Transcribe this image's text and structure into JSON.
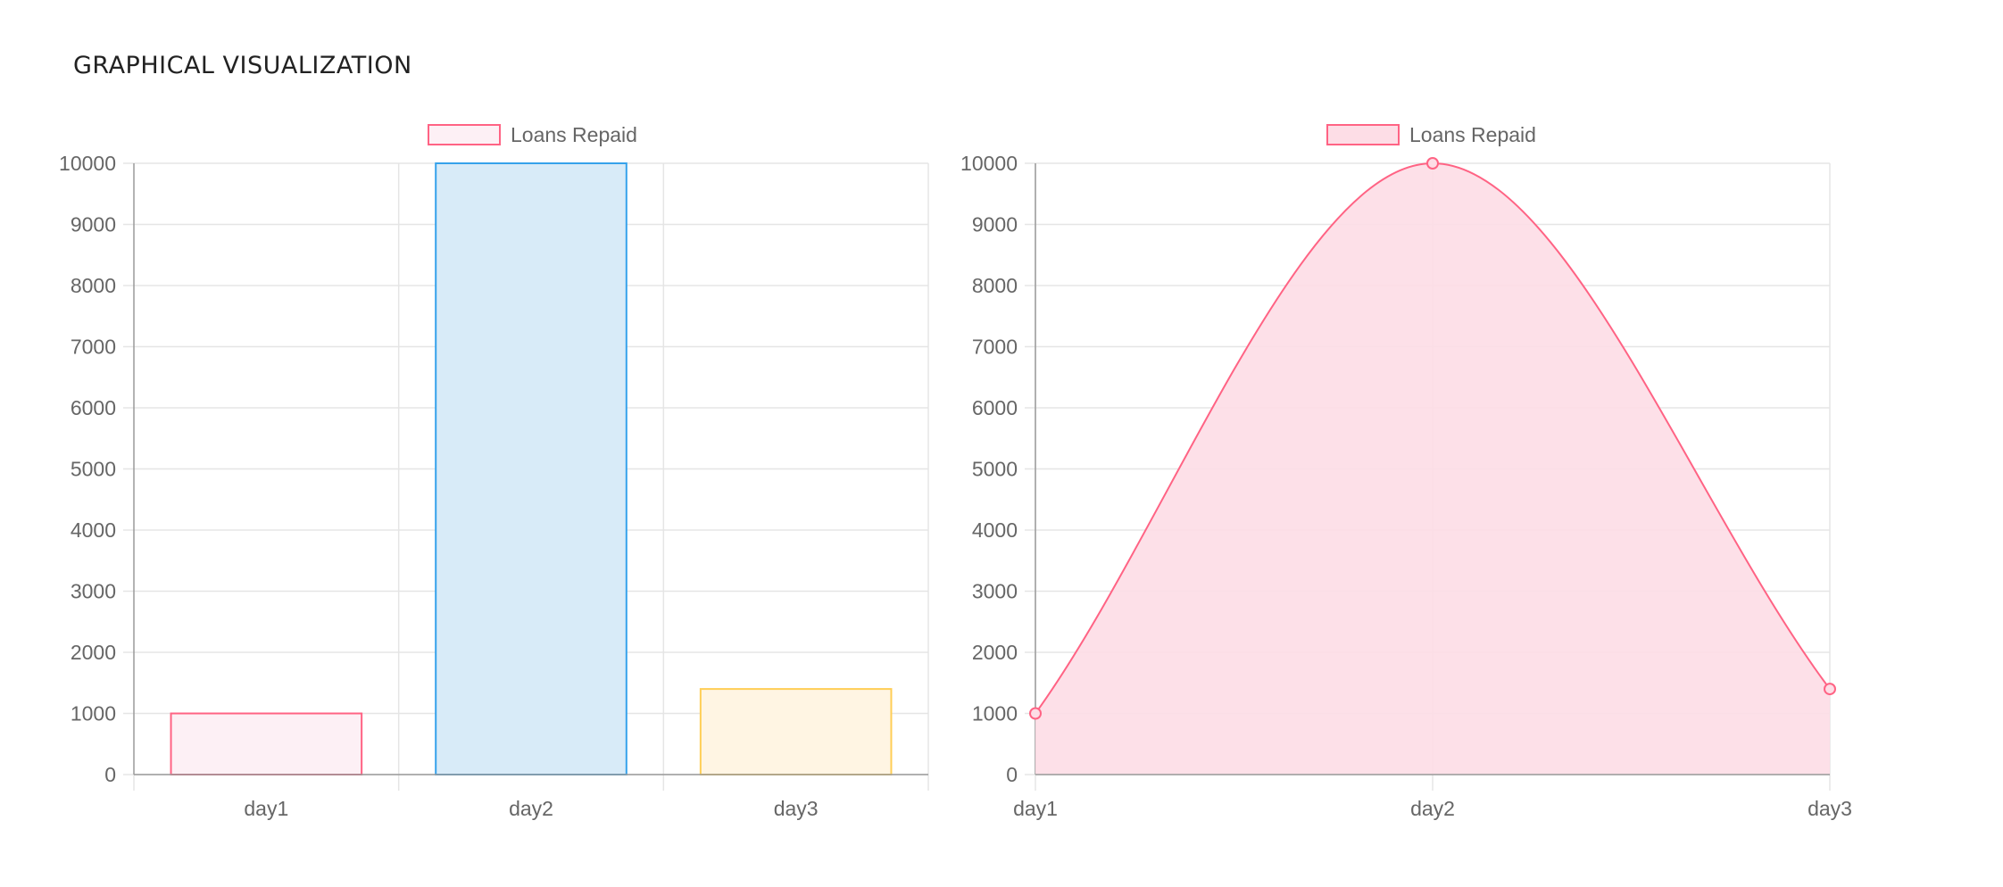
{
  "page": {
    "title": "GRAPHICAL VISUALIZATION"
  },
  "chart_data": [
    {
      "type": "bar",
      "legend": {
        "label": "Loans Repaid",
        "position": "top"
      },
      "categories": [
        "day1",
        "day2",
        "day3"
      ],
      "series": [
        {
          "name": "Loans Repaid",
          "values": [
            1000,
            10000,
            1400
          ]
        }
      ],
      "bar_colors": [
        {
          "fill": "#fdf0f5",
          "stroke": "#ff6384"
        },
        {
          "fill": "#d8ebf8",
          "stroke": "#36a2eb"
        },
        {
          "fill": "#fff5e3",
          "stroke": "#ffce56"
        }
      ],
      "ylim": [
        0,
        10000
      ],
      "yticks": [
        0,
        1000,
        2000,
        3000,
        4000,
        5000,
        6000,
        7000,
        8000,
        9000,
        10000
      ],
      "grid": true
    },
    {
      "type": "area",
      "legend": {
        "label": "Loans Repaid",
        "position": "top"
      },
      "categories": [
        "day1",
        "day2",
        "day3"
      ],
      "series": [
        {
          "name": "Loans Repaid",
          "values": [
            1000,
            10000,
            1400
          ]
        }
      ],
      "colors": {
        "fill": "#fddde6",
        "stroke": "#ff6384"
      },
      "ylim": [
        0,
        10000
      ],
      "yticks": [
        0,
        1000,
        2000,
        3000,
        4000,
        5000,
        6000,
        7000,
        8000,
        9000,
        10000
      ],
      "grid": true
    }
  ]
}
